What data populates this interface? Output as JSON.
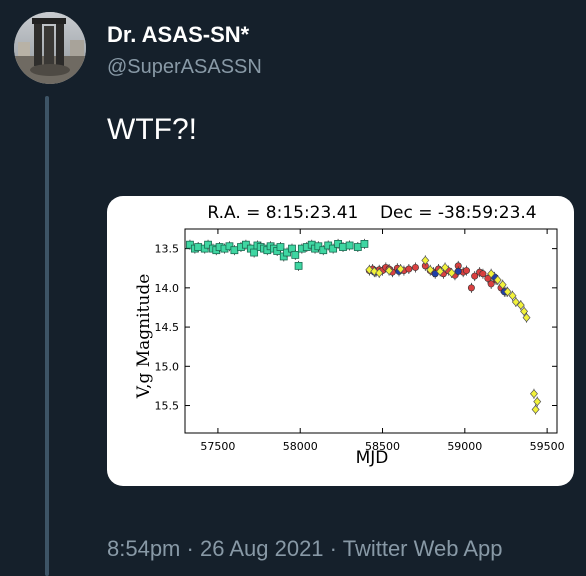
{
  "tweet": {
    "display_name": "Dr. ASAS-SN*",
    "handle": "@SuperASASSN",
    "text": "WTF?!",
    "time": "8:54pm",
    "date": "26 Aug 2021",
    "client": "Twitter Web App",
    "separator": "·"
  },
  "icons": {
    "avatar": "profile-photo"
  },
  "colors": {
    "background": "#15202b",
    "secondary_text": "#8899a6",
    "thread_line": "#3d5466",
    "asas_sn_v": "#3fd6a2",
    "g_band_blue": "#1f3fa8",
    "g_band_red": "#d94040",
    "g_band_yellow": "#f2f23a"
  },
  "chart_data": {
    "type": "scatter",
    "title": "R.A. = 8:15:23.41    Dec = -38:59:23.4",
    "xlabel": "MJD",
    "ylabel": "V,g Magnitude",
    "xlim": [
      57300,
      59560
    ],
    "ylim": [
      15.85,
      13.25
    ],
    "y_inverted": true,
    "xticks": [
      57500,
      58000,
      58500,
      59000,
      59500
    ],
    "yticks": [
      13.5,
      14.0,
      14.5,
      15.0,
      15.5
    ],
    "grid": false,
    "legend": "none",
    "series": [
      {
        "marker": "square",
        "color": "#3fd6a2",
        "points": [
          [
            57330,
            13.45
          ],
          [
            57360,
            13.5
          ],
          [
            57380,
            13.48
          ],
          [
            57420,
            13.5
          ],
          [
            57440,
            13.45
          ],
          [
            57470,
            13.5
          ],
          [
            57490,
            13.52
          ],
          [
            57510,
            13.48
          ],
          [
            57540,
            13.5
          ],
          [
            57570,
            13.47
          ],
          [
            57600,
            13.52
          ],
          [
            57640,
            13.48
          ],
          [
            57670,
            13.45
          ],
          [
            57700,
            13.5
          ],
          [
            57720,
            13.55
          ],
          [
            57740,
            13.46
          ],
          [
            57760,
            13.48
          ],
          [
            57780,
            13.5
          ],
          [
            57800,
            13.52
          ],
          [
            57820,
            13.47
          ],
          [
            57840,
            13.5
          ],
          [
            57860,
            13.53
          ],
          [
            57880,
            13.48
          ],
          [
            57900,
            13.6
          ],
          [
            57920,
            13.55
          ],
          [
            57950,
            13.5
          ],
          [
            57970,
            13.58
          ],
          [
            57990,
            13.72
          ],
          [
            58010,
            13.5
          ],
          [
            58040,
            13.48
          ],
          [
            58070,
            13.45
          ],
          [
            58090,
            13.5
          ],
          [
            58110,
            13.47
          ],
          [
            58140,
            13.52
          ],
          [
            58170,
            13.46
          ],
          [
            58200,
            13.5
          ],
          [
            58230,
            13.44
          ],
          [
            58260,
            13.48
          ],
          [
            58300,
            13.46
          ],
          [
            58350,
            13.48
          ],
          [
            58390,
            13.44
          ]
        ]
      },
      {
        "marker": "circle",
        "color": "#d94040",
        "points": [
          [
            58420,
            13.78
          ],
          [
            58440,
            13.76
          ],
          [
            58460,
            13.8
          ],
          [
            58480,
            13.77
          ],
          [
            58500,
            13.78
          ],
          [
            58520,
            13.74
          ],
          [
            58540,
            13.76
          ],
          [
            58560,
            13.8
          ],
          [
            58590,
            13.75
          ],
          [
            58630,
            13.78
          ],
          [
            58660,
            13.76
          ],
          [
            58700,
            13.74
          ],
          [
            58760,
            13.72
          ],
          [
            58790,
            13.78
          ],
          [
            58810,
            13.8
          ],
          [
            58840,
            13.76
          ],
          [
            58870,
            13.82
          ],
          [
            58900,
            13.78
          ],
          [
            58940,
            13.84
          ],
          [
            58960,
            13.72
          ],
          [
            58990,
            13.8
          ],
          [
            59010,
            13.78
          ],
          [
            59040,
            14.0
          ],
          [
            59060,
            13.85
          ],
          [
            59090,
            13.8
          ],
          [
            59110,
            13.82
          ],
          [
            59140,
            13.88
          ],
          [
            59160,
            13.95
          ],
          [
            59190,
            13.9
          ],
          [
            59220,
            14.0
          ],
          [
            59250,
            14.05
          ]
        ]
      },
      {
        "marker": "circle",
        "color": "#1f3fa8",
        "points": [
          [
            58450,
            13.8
          ],
          [
            58600,
            13.79
          ],
          [
            58820,
            13.82
          ],
          [
            58960,
            13.79
          ],
          [
            59180,
            13.86
          ],
          [
            59240,
            14.05
          ]
        ]
      },
      {
        "marker": "diamond",
        "color": "#f2f23a",
        "points": [
          [
            58420,
            13.77
          ],
          [
            58450,
            13.79
          ],
          [
            58480,
            13.81
          ],
          [
            58540,
            13.78
          ],
          [
            58610,
            13.76
          ],
          [
            58760,
            13.65
          ],
          [
            58790,
            13.77
          ],
          [
            58850,
            13.79
          ],
          [
            58880,
            13.74
          ],
          [
            58920,
            13.81
          ],
          [
            59160,
            13.82
          ],
          [
            59200,
            13.9
          ],
          [
            59230,
            13.96
          ],
          [
            59260,
            14.05
          ],
          [
            59290,
            14.1
          ],
          [
            59310,
            14.18
          ],
          [
            59340,
            14.22
          ],
          [
            59360,
            14.3
          ],
          [
            59375,
            14.38
          ],
          [
            59420,
            15.35
          ],
          [
            59440,
            15.45
          ],
          [
            59430,
            15.55
          ]
        ]
      }
    ]
  }
}
